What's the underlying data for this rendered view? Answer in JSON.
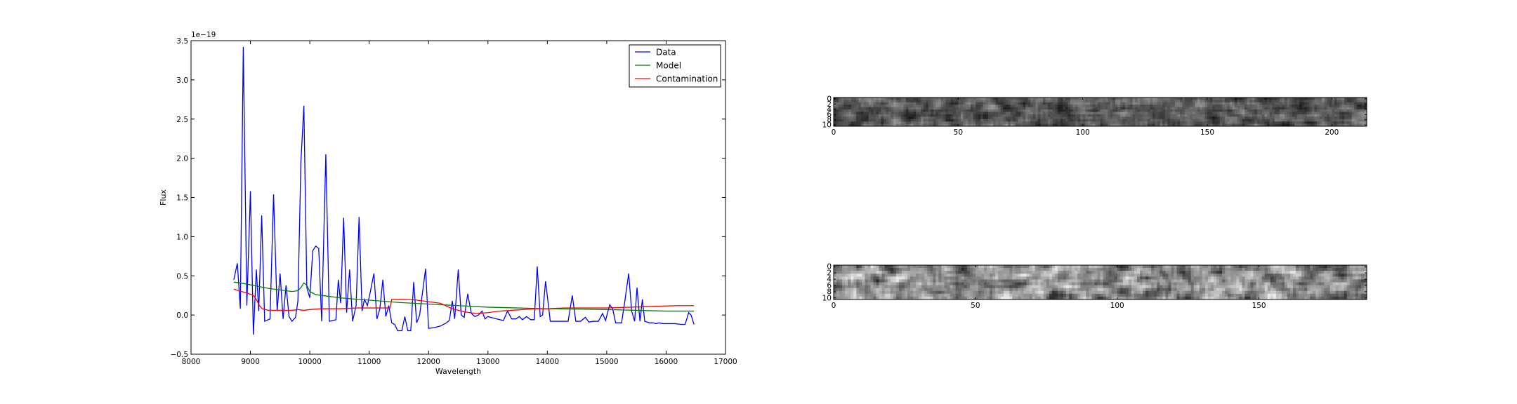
{
  "chart_data": [
    {
      "type": "line",
      "title": "",
      "xlabel": "Wavelength",
      "ylabel": "Flux",
      "offset_label": "1e−19",
      "xlim": [
        8000,
        17000
      ],
      "ylim": [
        -0.5,
        3.5
      ],
      "x_ticks": [
        8000,
        9000,
        10000,
        11000,
        12000,
        13000,
        14000,
        15000,
        16000,
        17000
      ],
      "y_ticks": [
        -0.5,
        0.0,
        0.5,
        1.0,
        1.5,
        2.0,
        2.5,
        3.0,
        3.5
      ],
      "y_tick_labels": [
        "−0.5",
        "0.0",
        "0.5",
        "1.0",
        "1.5",
        "2.0",
        "2.5",
        "3.0",
        "3.5"
      ],
      "legend_position": "top-right",
      "grid": false,
      "series": [
        {
          "name": "Data",
          "color": "#0000ff",
          "points": [
            [
              8720,
              0.45
            ],
            [
              8780,
              0.66
            ],
            [
              8830,
              0.08
            ],
            [
              8880,
              3.42
            ],
            [
              8940,
              0.12
            ],
            [
              9000,
              1.58
            ],
            [
              9050,
              -0.25
            ],
            [
              9100,
              0.58
            ],
            [
              9140,
              0.05
            ],
            [
              9190,
              1.27
            ],
            [
              9240,
              -0.08
            ],
            [
              9330,
              -0.05
            ],
            [
              9390,
              1.54
            ],
            [
              9450,
              0.05
            ],
            [
              9500,
              0.53
            ],
            [
              9550,
              -0.05
            ],
            [
              9600,
              0.38
            ],
            [
              9650,
              -0.02
            ],
            [
              9700,
              -0.08
            ],
            [
              9760,
              -0.03
            ],
            [
              9800,
              0.18
            ],
            [
              9850,
              1.95
            ],
            [
              9900,
              2.67
            ],
            [
              9950,
              0.35
            ],
            [
              10000,
              0.22
            ],
            [
              10050,
              0.82
            ],
            [
              10100,
              0.88
            ],
            [
              10150,
              0.85
            ],
            [
              10200,
              -0.08
            ],
            [
              10270,
              2.05
            ],
            [
              10330,
              -0.08
            ],
            [
              10440,
              -0.06
            ],
            [
              10480,
              0.45
            ],
            [
              10520,
              0.15
            ],
            [
              10570,
              1.24
            ],
            [
              10620,
              0.03
            ],
            [
              10670,
              0.58
            ],
            [
              10720,
              -0.08
            ],
            [
              10780,
              0.12
            ],
            [
              10830,
              1.25
            ],
            [
              10880,
              0.05
            ],
            [
              10920,
              0.2
            ],
            [
              10970,
              0.12
            ],
            [
              11020,
              0.3
            ],
            [
              11080,
              0.53
            ],
            [
              11130,
              -0.05
            ],
            [
              11180,
              0.08
            ],
            [
              11230,
              0.45
            ],
            [
              11280,
              -0.02
            ],
            [
              11330,
              0.12
            ],
            [
              11380,
              -0.1
            ],
            [
              11430,
              -0.12
            ],
            [
              11480,
              -0.2
            ],
            [
              11550,
              -0.2
            ],
            [
              11600,
              -0.02
            ],
            [
              11650,
              -0.2
            ],
            [
              11700,
              -0.2
            ],
            [
              11750,
              0.42
            ],
            [
              11800,
              -0.1
            ],
            [
              11850,
              0.0
            ],
            [
              11900,
              0.3
            ],
            [
              11950,
              0.59
            ],
            [
              12000,
              -0.17
            ],
            [
              12100,
              -0.16
            ],
            [
              12200,
              -0.14
            ],
            [
              12300,
              -0.1
            ],
            [
              12350,
              -0.07
            ],
            [
              12400,
              0.18
            ],
            [
              12440,
              -0.05
            ],
            [
              12500,
              0.58
            ],
            [
              12550,
              0.0
            ],
            [
              12600,
              -0.03
            ],
            [
              12660,
              0.27
            ],
            [
              12720,
              0.02
            ],
            [
              12780,
              -0.02
            ],
            [
              12840,
              0.0
            ],
            [
              12900,
              0.05
            ],
            [
              12950,
              -0.05
            ],
            [
              13000,
              -0.02
            ],
            [
              13050,
              -0.03
            ],
            [
              13150,
              -0.05
            ],
            [
              13260,
              -0.07
            ],
            [
              13330,
              0.05
            ],
            [
              13400,
              -0.05
            ],
            [
              13470,
              -0.05
            ],
            [
              13530,
              -0.02
            ],
            [
              13580,
              -0.06
            ],
            [
              13650,
              -0.02
            ],
            [
              13720,
              -0.06
            ],
            [
              13780,
              -0.06
            ],
            [
              13830,
              0.62
            ],
            [
              13880,
              -0.02
            ],
            [
              13920,
              0.0
            ],
            [
              13970,
              0.43
            ],
            [
              14050,
              -0.08
            ],
            [
              14200,
              -0.08
            ],
            [
              14350,
              -0.08
            ],
            [
              14420,
              0.25
            ],
            [
              14480,
              -0.08
            ],
            [
              14560,
              -0.08
            ],
            [
              14640,
              -0.03
            ],
            [
              14700,
              -0.09
            ],
            [
              14780,
              -0.08
            ],
            [
              14860,
              -0.08
            ],
            [
              14930,
              0.02
            ],
            [
              14980,
              -0.07
            ],
            [
              15050,
              0.13
            ],
            [
              15100,
              0.08
            ],
            [
              15150,
              -0.1
            ],
            [
              15250,
              -0.1
            ],
            [
              15300,
              0.15
            ],
            [
              15370,
              0.53
            ],
            [
              15420,
              0.05
            ],
            [
              15470,
              -0.08
            ],
            [
              15510,
              0.35
            ],
            [
              15560,
              -0.08
            ],
            [
              15600,
              0.2
            ],
            [
              15640,
              -0.08
            ],
            [
              15720,
              -0.1
            ],
            [
              15780,
              -0.1
            ],
            [
              15830,
              -0.11
            ],
            [
              15880,
              -0.1
            ],
            [
              15950,
              -0.11
            ],
            [
              16050,
              -0.11
            ],
            [
              16150,
              -0.11
            ],
            [
              16250,
              -0.12
            ],
            [
              16320,
              -0.12
            ],
            [
              16380,
              0.03
            ],
            [
              16420,
              0.0
            ],
            [
              16470,
              -0.12
            ]
          ]
        },
        {
          "name": "Model",
          "color": "#008000",
          "points": [
            [
              8720,
              0.42
            ],
            [
              8900,
              0.4
            ],
            [
              9100,
              0.37
            ],
            [
              9300,
              0.34
            ],
            [
              9500,
              0.32
            ],
            [
              9700,
              0.3
            ],
            [
              9800,
              0.31
            ],
            [
              9860,
              0.36
            ],
            [
              9900,
              0.41
            ],
            [
              9950,
              0.38
            ],
            [
              10000,
              0.3
            ],
            [
              10100,
              0.26
            ],
            [
              10300,
              0.24
            ],
            [
              10500,
              0.22
            ],
            [
              10800,
              0.2
            ],
            [
              11000,
              0.19
            ],
            [
              11500,
              0.16
            ],
            [
              12000,
              0.14
            ],
            [
              12500,
              0.12
            ],
            [
              13000,
              0.1
            ],
            [
              13500,
              0.09
            ],
            [
              14000,
              0.08
            ],
            [
              14500,
              0.075
            ],
            [
              15000,
              0.07
            ],
            [
              15500,
              0.06
            ],
            [
              16000,
              0.05
            ],
            [
              16470,
              0.05
            ]
          ]
        },
        {
          "name": "Contamination",
          "color": "#ff0000",
          "points": [
            [
              8720,
              0.33
            ],
            [
              8850,
              0.3
            ],
            [
              8950,
              0.28
            ],
            [
              9050,
              0.25
            ],
            [
              9100,
              0.2
            ],
            [
              9150,
              0.12
            ],
            [
              9200,
              0.08
            ],
            [
              9300,
              0.06
            ],
            [
              9500,
              0.06
            ],
            [
              9700,
              0.06
            ],
            [
              9800,
              0.07
            ],
            [
              9900,
              0.06
            ],
            [
              10000,
              0.07
            ],
            [
              10200,
              0.08
            ],
            [
              10500,
              0.08
            ],
            [
              10800,
              0.09
            ],
            [
              11000,
              0.09
            ],
            [
              11350,
              0.09
            ],
            [
              11380,
              0.2
            ],
            [
              11600,
              0.2
            ],
            [
              11800,
              0.19
            ],
            [
              12000,
              0.17
            ],
            [
              12200,
              0.15
            ],
            [
              12400,
              0.08
            ],
            [
              12600,
              0.04
            ],
            [
              12800,
              0.02
            ],
            [
              13000,
              0.03
            ],
            [
              13200,
              0.05
            ],
            [
              13400,
              0.06
            ],
            [
              13600,
              0.07
            ],
            [
              13800,
              0.08
            ],
            [
              14000,
              0.08
            ],
            [
              14300,
              0.09
            ],
            [
              14600,
              0.09
            ],
            [
              15000,
              0.09
            ],
            [
              15400,
              0.1
            ],
            [
              15800,
              0.11
            ],
            [
              16200,
              0.12
            ],
            [
              16470,
              0.12
            ]
          ]
        }
      ]
    },
    {
      "type": "heatmap",
      "colormap": "gray",
      "xlim": [
        0,
        214
      ],
      "ylim": [
        11,
        0
      ],
      "x_ticks": [
        0,
        50,
        100,
        150,
        200
      ],
      "y_ticks": [
        0,
        2,
        4,
        6,
        8,
        10
      ],
      "rows": 12,
      "cols": 214
    },
    {
      "type": "heatmap",
      "colormap": "gray",
      "xlim": [
        0,
        188
      ],
      "ylim": [
        11,
        0
      ],
      "x_ticks": [
        0,
        50,
        100,
        150
      ],
      "y_ticks": [
        0,
        2,
        4,
        6,
        8,
        10
      ],
      "rows": 12,
      "cols": 188
    }
  ]
}
